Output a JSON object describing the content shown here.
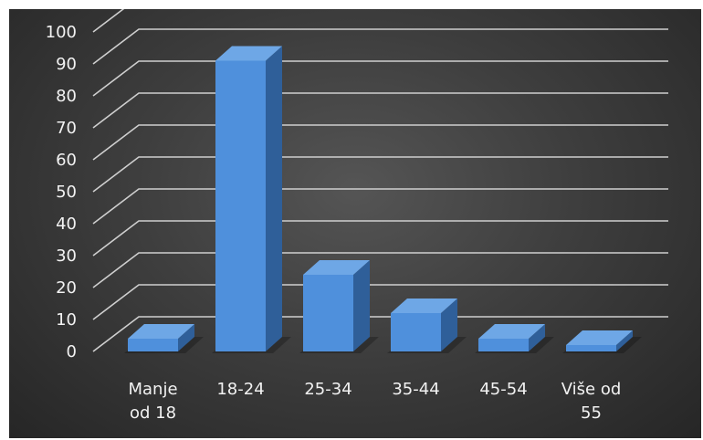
{
  "chart_data": {
    "type": "bar",
    "title": "",
    "xlabel": "",
    "ylabel": "",
    "categories": [
      [
        "Manje",
        "od 18"
      ],
      [
        "18-24"
      ],
      [
        "25-34"
      ],
      [
        "35-44"
      ],
      [
        "45-54"
      ],
      [
        "Više od",
        "55"
      ]
    ],
    "values": [
      4,
      91,
      24,
      12,
      4,
      2
    ],
    "ylim": [
      0,
      100
    ],
    "yticks": [
      0,
      10,
      20,
      30,
      40,
      50,
      60,
      70,
      80,
      90,
      100
    ],
    "grid": true,
    "legend": "none",
    "style": "3d-column",
    "colors": {
      "bar_front": "#4f90dc",
      "bar_top": "#6ea7e6",
      "bar_side": "#2f5f99",
      "grid": "#cfcfcf",
      "text": "#f2f2f2"
    }
  }
}
